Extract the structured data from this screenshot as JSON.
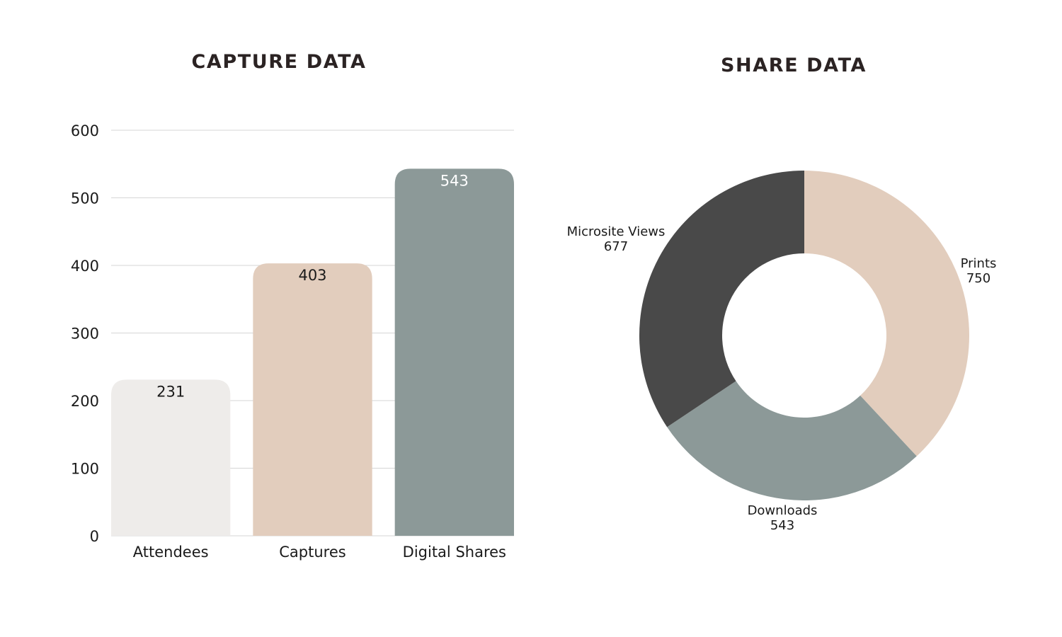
{
  "colors": {
    "title": "#2b2323",
    "text": "#1a1a1a",
    "gridline": "#d6d6d6",
    "bar_value_on_dark": "#ffffff",
    "attendees": "#eeecea",
    "captures": "#e2cdbd",
    "digital_shares": "#8c9998",
    "prints": "#e2cdbd",
    "downloads": "#8c9998",
    "microsite_views": "#494949"
  },
  "chart_data": [
    {
      "type": "bar",
      "title": "CAPTURE DATA",
      "xlabel": "",
      "ylabel": "",
      "categories": [
        "Attendees",
        "Captures",
        "Digital Shares"
      ],
      "values": [
        231,
        403,
        543
      ],
      "value_labels": [
        "231",
        "403",
        "543"
      ],
      "ylim": [
        0,
        600
      ],
      "yticks": [
        0,
        100,
        200,
        300,
        400,
        500,
        600
      ],
      "ytick_labels": [
        "0",
        "100",
        "200",
        "300",
        "400",
        "500",
        "600"
      ],
      "grid": true,
      "bar_colors": [
        "#eeecea",
        "#e2cdbd",
        "#8c9998"
      ]
    },
    {
      "type": "pie",
      "title": "SHARE DATA",
      "donut": true,
      "slices": [
        {
          "label": "Prints",
          "value": 750,
          "value_label": "750",
          "color": "#e2cdbd"
        },
        {
          "label": "Downloads",
          "value": 543,
          "value_label": "543",
          "color": "#8c9998"
        },
        {
          "label": "Microsite Views",
          "value": 677,
          "value_label": "677",
          "color": "#494949"
        }
      ]
    }
  ]
}
